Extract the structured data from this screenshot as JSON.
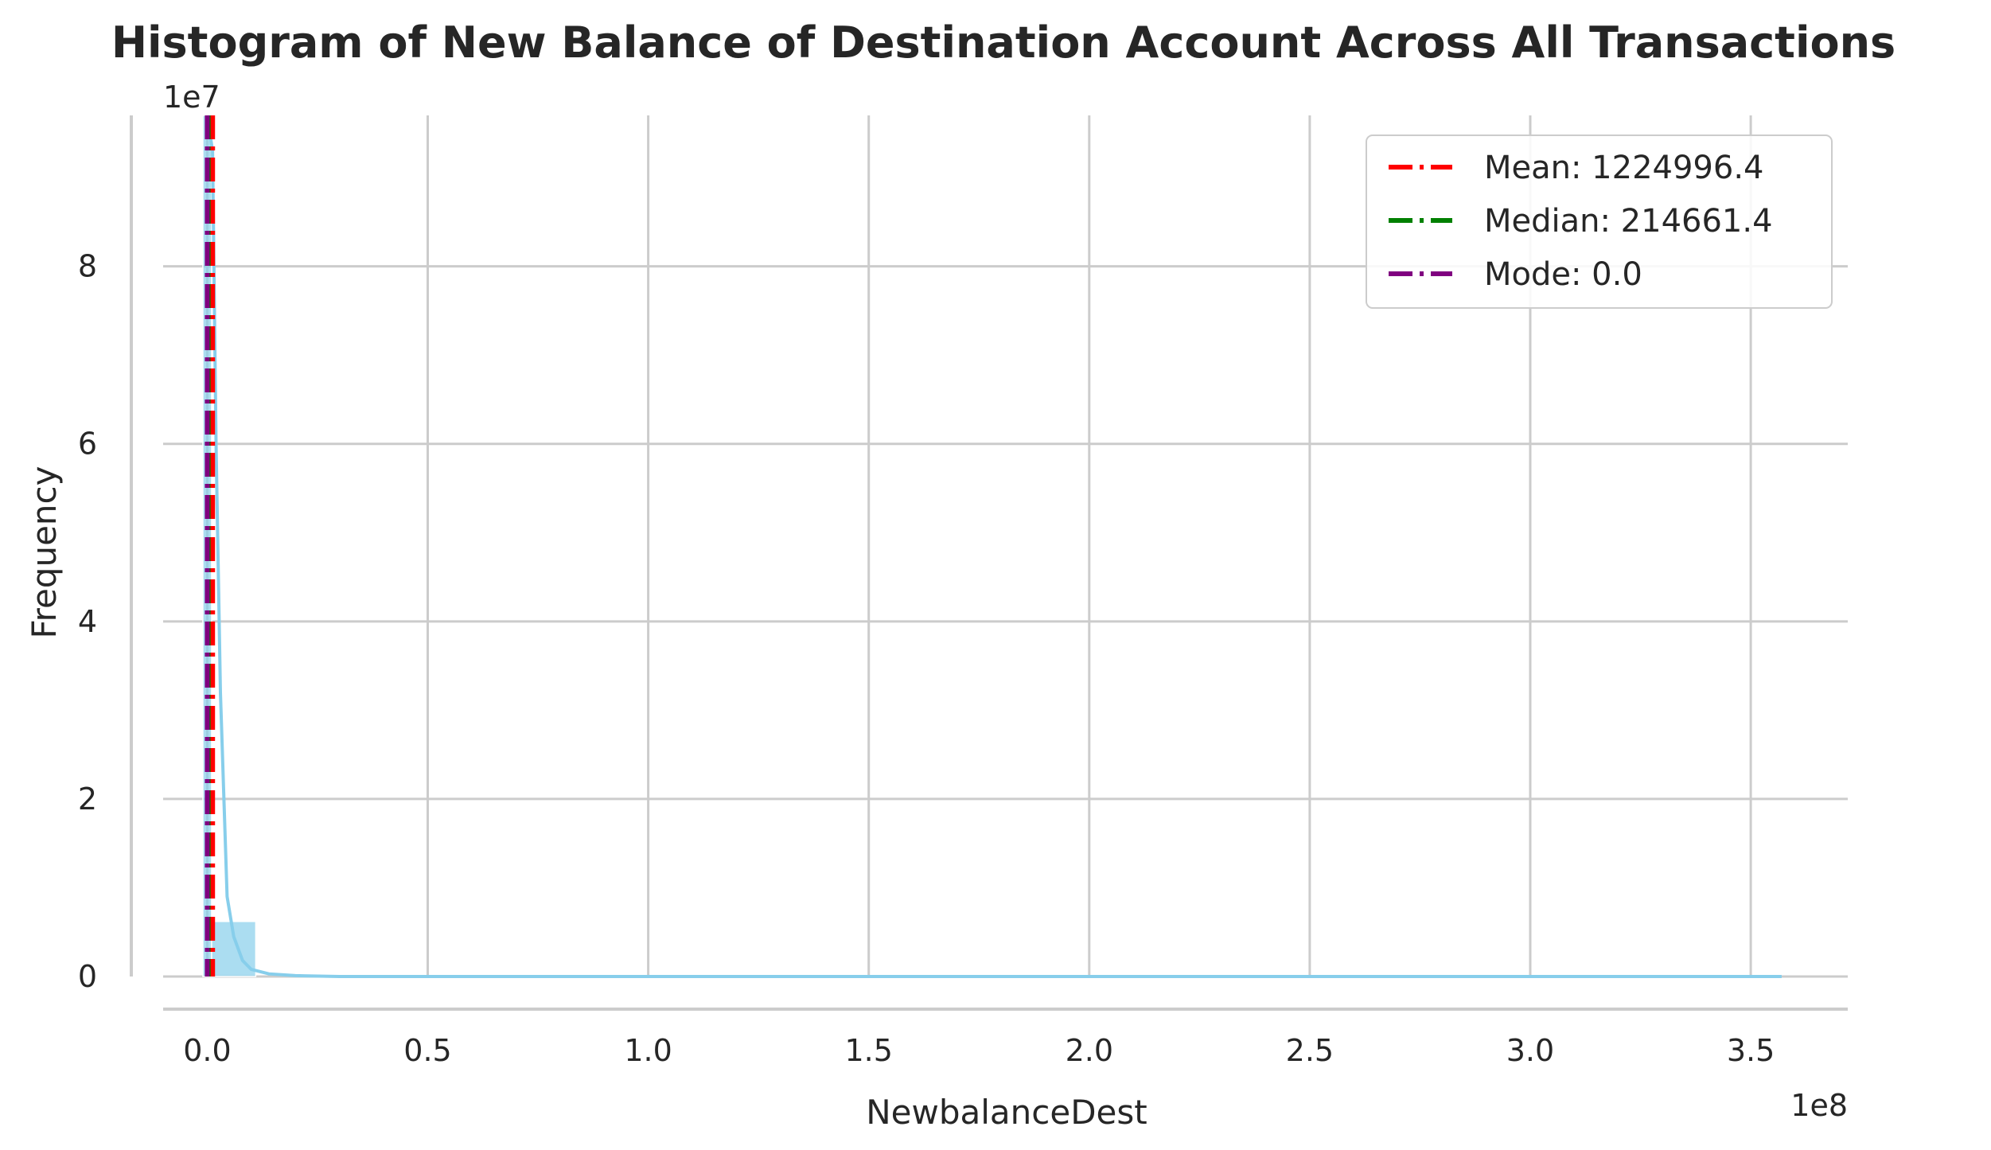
{
  "chart_data": {
    "type": "bar",
    "title": "Histogram of New Balance of Destination Account Across All Transactions",
    "xlabel": "NewbalanceDest",
    "ylabel": "Frequency",
    "x_offset_label": "1e8",
    "y_offset_label": "1e7",
    "xlim": [
      -0.1,
      3.72
    ],
    "ylim": [
      0,
      9.7
    ],
    "x_ticks": [
      0.0,
      0.5,
      1.0,
      1.5,
      2.0,
      2.5,
      3.0,
      3.5
    ],
    "x_tick_labels": [
      "0.0",
      "0.5",
      "1.0",
      "1.5",
      "2.0",
      "2.5",
      "3.0",
      "3.5"
    ],
    "y_ticks": [
      0,
      2,
      4,
      6,
      8
    ],
    "y_tick_labels": [
      "0",
      "2",
      "4",
      "6",
      "8"
    ],
    "grid": true,
    "legend_position": "top-right",
    "bar_color": "#87ceeb",
    "bars": [
      {
        "x0": -0.01,
        "x1": 0.01,
        "height": 9.7
      },
      {
        "x0": 0.01,
        "x1": 0.11,
        "height": 0.62
      }
    ],
    "kde": {
      "color": "#87ceeb",
      "points": [
        [
          0.0,
          9.7
        ],
        [
          0.012,
          9.3
        ],
        [
          0.02,
          6.0
        ],
        [
          0.03,
          3.2
        ],
        [
          0.045,
          0.9
        ],
        [
          0.06,
          0.45
        ],
        [
          0.08,
          0.18
        ],
        [
          0.1,
          0.08
        ],
        [
          0.14,
          0.03
        ],
        [
          0.2,
          0.01
        ],
        [
          0.3,
          0.0
        ],
        [
          3.57,
          0.0
        ]
      ]
    },
    "reference_lines": [
      {
        "label": "Mean: 1224996.4",
        "value": 0.012249964,
        "color": "#ff0000"
      },
      {
        "label": "Median: 214661.4",
        "value": 0.002146614,
        "color": "#008000"
      },
      {
        "label": "Mode: 0.0",
        "value": 0.0,
        "color": "#800080"
      }
    ]
  }
}
